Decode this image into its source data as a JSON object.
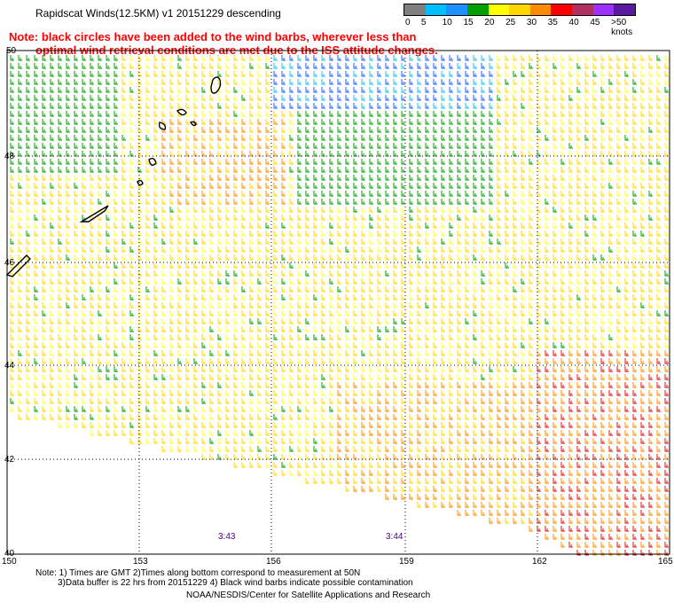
{
  "title": "Rapidscat Winds(12.5KM) v1 20151229 descending",
  "note": {
    "line1": "Note: black circles have been added to the wind barbs, wherever less than",
    "line2": "optimal wind retrieval conditions are met due to the ISS attitude changes."
  },
  "legend": {
    "labels": [
      "0",
      "5",
      "10",
      "15",
      "20",
      "25",
      "30",
      "35",
      "40",
      "45",
      ">50 knots"
    ],
    "colors": [
      "#7f7f7f",
      "#00bfff",
      "#1e90ff",
      "#00a000",
      "#ffff00",
      "#ffd700",
      "#ff8c00",
      "#ff0000",
      "#b03060",
      "#9b30ff",
      "#5a1aa0"
    ]
  },
  "axes": {
    "lat_labels": [
      "50",
      "48",
      "46",
      "44",
      "42",
      "40"
    ],
    "lon_labels": [
      "150",
      "153",
      "156",
      "159",
      "162",
      "165"
    ]
  },
  "times": [
    "3:43",
    "3:44"
  ],
  "footer": {
    "line1": "Note: 1) Times are GMT 2)Times along bottom correspond to measurement at 50N",
    "line2": "3)Data buffer is 22 hrs from 20151229 4) Black wind barbs indicate possible contamination",
    "line3": "NOAA/NESDIS/Center for Satellite Applications and Research"
  }
}
